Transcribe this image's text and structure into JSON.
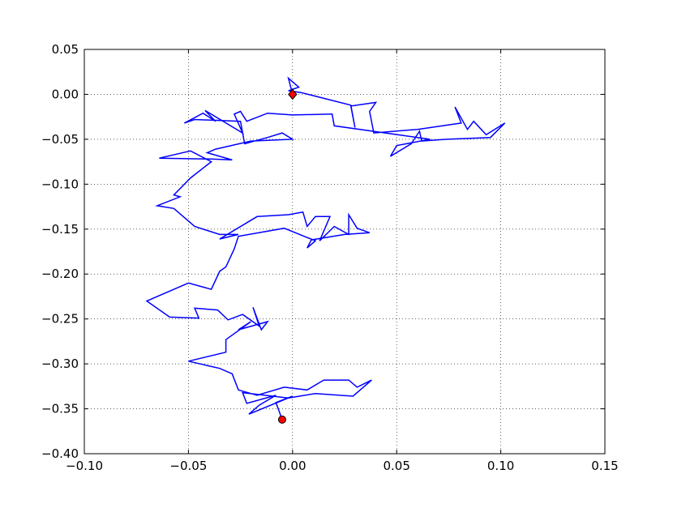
{
  "chart_data": {
    "type": "line",
    "xlim": [
      -0.1,
      0.15
    ],
    "ylim": [
      -0.4,
      0.05
    ],
    "xticks": [
      {
        "value": -0.1,
        "label": "−0.10"
      },
      {
        "value": -0.05,
        "label": "−0.05"
      },
      {
        "value": 0,
        "label": "0.00"
      },
      0.05,
      {
        "value": 0.1,
        "label": "0.10"
      },
      0.15
    ],
    "yticks": [
      0.05,
      {
        "value": 0,
        "label": "0.00"
      },
      {
        "value": -0.05,
        "label": "−0.05"
      },
      {
        "value": -0.1,
        "label": "−0.10"
      },
      {
        "value": -0.15,
        "label": "−0.15"
      },
      {
        "value": -0.2,
        "label": "−0.20"
      },
      {
        "value": -0.25,
        "label": "−0.25"
      },
      {
        "value": -0.3,
        "label": "−0.30"
      },
      {
        "value": -0.35,
        "label": "−0.35"
      },
      {
        "value": -0.4,
        "label": "−0.40"
      }
    ],
    "grid": true,
    "line": {
      "color": "#0000ff",
      "x": [
        0,
        -0.002,
        0.003,
        -0.002,
        0.004,
        0.028,
        0.03,
        0.028,
        0.04,
        0.037,
        0.039,
        0.06,
        0.081,
        0.078,
        0.084,
        0.087,
        0.093,
        0.102,
        0.095,
        0.074,
        0.062,
        0.061,
        0.057,
        0.047,
        0.05,
        0.066,
        0.02,
        0.019,
        0.0,
        -0.012,
        -0.022,
        -0.025,
        -0.028,
        -0.024,
        -0.042,
        -0.037,
        -0.043,
        -0.052,
        -0.047,
        -0.025,
        -0.023,
        -0.012,
        -0.005,
        0.0,
        -0.02,
        -0.037,
        -0.041,
        -0.029,
        -0.039,
        -0.064,
        -0.049,
        -0.039,
        -0.049,
        -0.057,
        -0.054,
        -0.065,
        -0.057,
        -0.047,
        -0.035,
        -0.026,
        -0.035,
        -0.017,
        -0.002,
        0.005,
        0.007,
        0.011,
        0.018,
        0.013,
        0.02,
        0.027,
        0.027,
        0.031,
        0.037,
        0.025,
        0.009,
        0.007,
        0.011,
        -0.004,
        -0.026,
        -0.028,
        -0.032,
        -0.035,
        -0.039,
        -0.05,
        -0.07,
        -0.059,
        -0.045,
        -0.047,
        -0.036,
        -0.031,
        -0.024,
        -0.016,
        -0.019,
        -0.015,
        -0.012,
        -0.026,
        -0.02,
        -0.032,
        -0.032,
        -0.05,
        -0.035,
        -0.029,
        -0.026,
        -0.017,
        -0.004,
        0.007,
        0.015,
        0.027,
        0.031,
        0.038,
        0.029,
        0.011,
        -0.002,
        -0.024,
        -0.022,
        -0.008,
        -0.016,
        -0.021,
        0.0,
        -0.008,
        -0.005
      ],
      "y": [
        0,
        0.018,
        0.008,
        0.004,
        0.002,
        -0.012,
        -0.037,
        -0.013,
        -0.009,
        -0.019,
        -0.043,
        -0.039,
        -0.032,
        -0.014,
        -0.039,
        -0.03,
        -0.045,
        -0.032,
        -0.048,
        -0.05,
        -0.052,
        -0.041,
        -0.055,
        -0.069,
        -0.057,
        -0.05,
        -0.035,
        -0.022,
        -0.023,
        -0.021,
        -0.03,
        -0.019,
        -0.022,
        -0.043,
        -0.018,
        -0.03,
        -0.021,
        -0.032,
        -0.028,
        -0.03,
        -0.055,
        -0.048,
        -0.043,
        -0.05,
        -0.052,
        -0.061,
        -0.065,
        -0.073,
        -0.072,
        -0.071,
        -0.063,
        -0.075,
        -0.093,
        -0.112,
        -0.114,
        -0.124,
        -0.127,
        -0.147,
        -0.156,
        -0.156,
        -0.161,
        -0.136,
        -0.134,
        -0.131,
        -0.147,
        -0.136,
        -0.136,
        -0.163,
        -0.147,
        -0.156,
        -0.134,
        -0.149,
        -0.154,
        -0.156,
        -0.162,
        -0.171,
        -0.163,
        -0.149,
        -0.158,
        -0.172,
        -0.192,
        -0.197,
        -0.217,
        -0.21,
        -0.23,
        -0.248,
        -0.249,
        -0.238,
        -0.24,
        -0.251,
        -0.245,
        -0.258,
        -0.237,
        -0.262,
        -0.253,
        -0.262,
        -0.253,
        -0.273,
        -0.287,
        -0.297,
        -0.305,
        -0.311,
        -0.329,
        -0.335,
        -0.326,
        -0.329,
        -0.318,
        -0.318,
        -0.326,
        -0.318,
        -0.336,
        -0.333,
        -0.338,
        -0.332,
        -0.344,
        -0.335,
        -0.346,
        -0.356,
        -0.336,
        -0.343,
        -0.362
      ]
    },
    "start": {
      "x": 0,
      "y": 0,
      "color": "#ff0000",
      "marker": "diamond"
    },
    "end": {
      "x": -0.005,
      "y": -0.362,
      "color": "#ff0000",
      "marker": "circle"
    }
  }
}
